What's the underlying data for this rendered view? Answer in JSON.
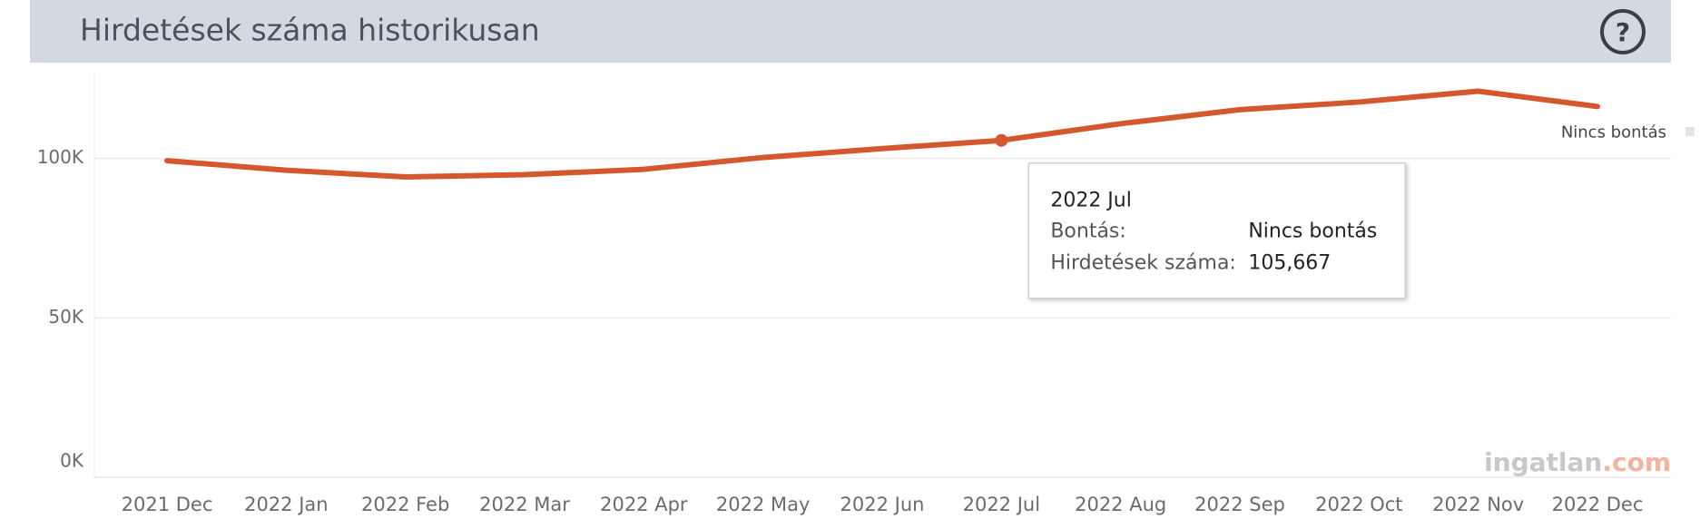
{
  "header": {
    "title": "Hirdetések száma historikusan",
    "help_icon": "?"
  },
  "chart_data": {
    "type": "line",
    "categories": [
      "2021 Dec",
      "2022 Jan",
      "2022 Feb",
      "2022 Mar",
      "2022 Apr",
      "2022 May",
      "2022 Jun",
      "2022 Jul",
      "2022 Aug",
      "2022 Sep",
      "2022 Oct",
      "2022 Nov",
      "2022 Dec"
    ],
    "series": [
      {
        "name": "Nincs bontás",
        "color": "#d4582e",
        "values": [
          99300,
          96300,
          94200,
          94900,
          96600,
          100300,
          103100,
          105667,
          110900,
          115300,
          117700,
          121100,
          116300
        ],
        "value_labels": [
          null,
          null,
          null,
          null,
          null,
          null,
          null,
          "105,667",
          null,
          null,
          null,
          null,
          null
        ]
      }
    ],
    "ylim": [
      0,
      127500
    ],
    "yticks": [
      {
        "value": 0,
        "label": "0K"
      },
      {
        "value": 50000,
        "label": "50K"
      },
      {
        "value": 100000,
        "label": "100K"
      }
    ],
    "grid": true,
    "tooltip": {
      "labels": [
        "Bontás:",
        "Hirdetések száma:"
      ]
    },
    "watermark": [
      "ingatlan",
      ".com"
    ]
  }
}
